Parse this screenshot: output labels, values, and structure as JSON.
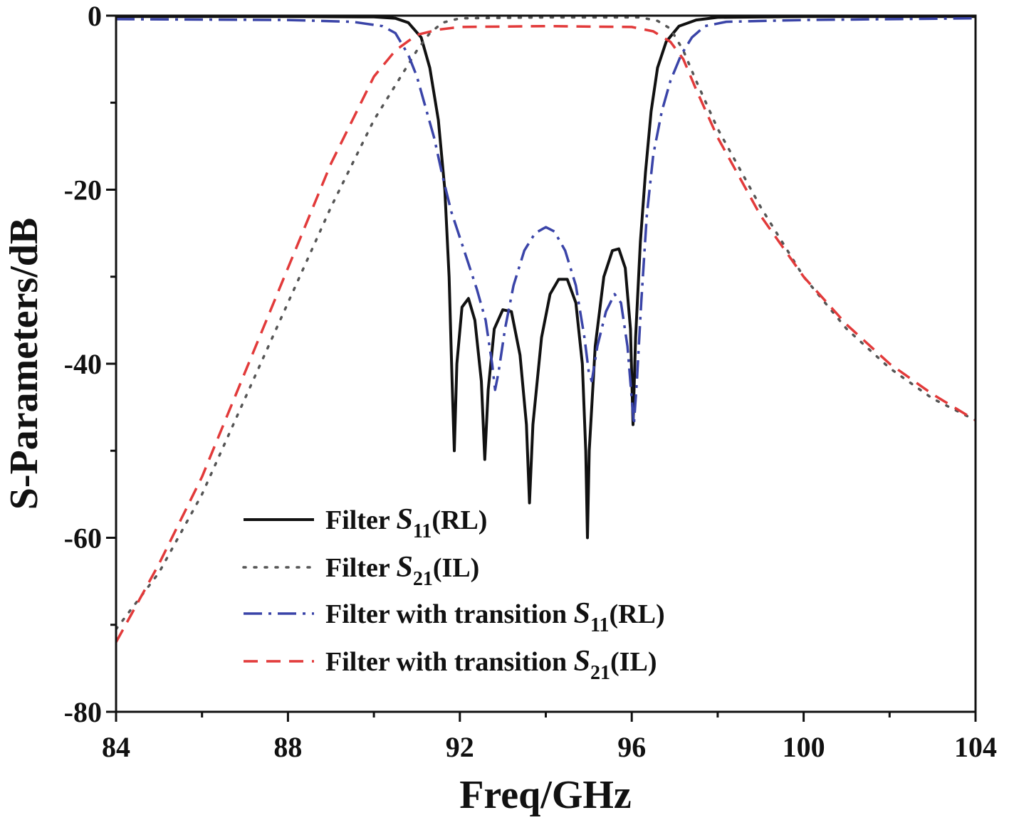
{
  "chart_data": {
    "type": "line",
    "xlabel": "Freq/GHz",
    "ylabel": "S-Parameters/dB",
    "xlim": [
      84,
      104
    ],
    "ylim": [
      -80,
      0
    ],
    "xticks": [
      "84",
      "88",
      "92",
      "96",
      "100",
      "104"
    ],
    "yticks": [
      "0",
      "-20",
      "-40",
      "-60",
      "-80"
    ],
    "grid": false,
    "legend_position": "bottom-center",
    "series": [
      {
        "name": "Filter S11(RL)",
        "legend": {
          "pre": "Filter ",
          "sym": "S",
          "sub": "11",
          "post": "(RL)"
        },
        "color": "#111111",
        "style": "solid",
        "points": [
          [
            84,
            -0.1
          ],
          [
            88,
            -0.1
          ],
          [
            90,
            -0.15
          ],
          [
            90.5,
            -0.3
          ],
          [
            90.8,
            -0.8
          ],
          [
            91.1,
            -2.5
          ],
          [
            91.3,
            -6
          ],
          [
            91.5,
            -12
          ],
          [
            91.65,
            -20
          ],
          [
            91.75,
            -30
          ],
          [
            91.82,
            -42
          ],
          [
            91.87,
            -50
          ],
          [
            91.93,
            -40
          ],
          [
            92.05,
            -33.5
          ],
          [
            92.2,
            -32.5
          ],
          [
            92.35,
            -35
          ],
          [
            92.5,
            -42
          ],
          [
            92.58,
            -51
          ],
          [
            92.66,
            -43
          ],
          [
            92.8,
            -36
          ],
          [
            93.0,
            -33.8
          ],
          [
            93.2,
            -34
          ],
          [
            93.4,
            -39
          ],
          [
            93.55,
            -47
          ],
          [
            93.62,
            -56
          ],
          [
            93.7,
            -47
          ],
          [
            93.9,
            -37
          ],
          [
            94.1,
            -32
          ],
          [
            94.3,
            -30.3
          ],
          [
            94.5,
            -30.3
          ],
          [
            94.7,
            -33
          ],
          [
            94.85,
            -40
          ],
          [
            94.93,
            -50
          ],
          [
            94.97,
            -60
          ],
          [
            95.01,
            -50
          ],
          [
            95.15,
            -38
          ],
          [
            95.35,
            -30
          ],
          [
            95.55,
            -27
          ],
          [
            95.7,
            -26.8
          ],
          [
            95.85,
            -29
          ],
          [
            95.97,
            -36
          ],
          [
            96.03,
            -47
          ],
          [
            96.09,
            -37
          ],
          [
            96.2,
            -26
          ],
          [
            96.32,
            -18
          ],
          [
            96.45,
            -11
          ],
          [
            96.6,
            -6
          ],
          [
            96.8,
            -3
          ],
          [
            97.1,
            -1.2
          ],
          [
            97.5,
            -0.5
          ],
          [
            98,
            -0.2
          ],
          [
            100,
            -0.1
          ],
          [
            104,
            -0.1
          ]
        ]
      },
      {
        "name": "Filter S21(IL)",
        "legend": {
          "pre": "Filter ",
          "sym": "S",
          "sub": "21",
          "post": "(IL)"
        },
        "color": "#555555",
        "style": "dotted",
        "points": [
          [
            84,
            -70.5
          ],
          [
            85,
            -64
          ],
          [
            86,
            -55
          ],
          [
            87,
            -44
          ],
          [
            88,
            -33
          ],
          [
            89,
            -22
          ],
          [
            90,
            -12
          ],
          [
            90.5,
            -8
          ],
          [
            91,
            -4
          ],
          [
            91.3,
            -2
          ],
          [
            91.6,
            -0.8
          ],
          [
            92,
            -0.3
          ],
          [
            94,
            -0.2
          ],
          [
            96.2,
            -0.2
          ],
          [
            96.6,
            -0.6
          ],
          [
            96.9,
            -1.5
          ],
          [
            97.2,
            -4
          ],
          [
            97.5,
            -7.5
          ],
          [
            98,
            -13
          ],
          [
            99,
            -22
          ],
          [
            100,
            -30
          ],
          [
            101,
            -36
          ],
          [
            102,
            -40.5
          ],
          [
            103,
            -44
          ],
          [
            104,
            -46.5
          ]
        ]
      },
      {
        "name": "Filter with transition S11(RL)",
        "legend": {
          "pre": "Filter with transition ",
          "sym": "S",
          "sub": "11",
          "post": "(RL)"
        },
        "color": "#3a44a8",
        "style": "dashdot",
        "points": [
          [
            84,
            -0.4
          ],
          [
            88,
            -0.5
          ],
          [
            89.5,
            -0.7
          ],
          [
            90.2,
            -1.2
          ],
          [
            90.5,
            -2
          ],
          [
            90.8,
            -4.5
          ],
          [
            91.0,
            -7
          ],
          [
            91.2,
            -10.5
          ],
          [
            91.4,
            -14
          ],
          [
            91.6,
            -18.5
          ],
          [
            91.8,
            -22.5
          ],
          [
            92.0,
            -25.5
          ],
          [
            92.2,
            -28.5
          ],
          [
            92.4,
            -31.5
          ],
          [
            92.6,
            -35
          ],
          [
            92.75,
            -40
          ],
          [
            92.82,
            -43
          ],
          [
            92.9,
            -41
          ],
          [
            93.05,
            -36
          ],
          [
            93.25,
            -31
          ],
          [
            93.5,
            -27
          ],
          [
            93.75,
            -25
          ],
          [
            94.0,
            -24.3
          ],
          [
            94.2,
            -24.8
          ],
          [
            94.45,
            -27
          ],
          [
            94.7,
            -31
          ],
          [
            94.9,
            -37
          ],
          [
            95.0,
            -41
          ],
          [
            95.07,
            -42
          ],
          [
            95.2,
            -38
          ],
          [
            95.4,
            -34
          ],
          [
            95.6,
            -32
          ],
          [
            95.75,
            -33
          ],
          [
            95.9,
            -38
          ],
          [
            96.0,
            -44
          ],
          [
            96.05,
            -47
          ],
          [
            96.12,
            -42
          ],
          [
            96.22,
            -33
          ],
          [
            96.35,
            -23
          ],
          [
            96.5,
            -16
          ],
          [
            96.7,
            -11
          ],
          [
            96.9,
            -7.5
          ],
          [
            97.15,
            -4.5
          ],
          [
            97.4,
            -2.5
          ],
          [
            97.7,
            -1.2
          ],
          [
            98.2,
            -0.7
          ],
          [
            100,
            -0.5
          ],
          [
            104,
            -0.3
          ]
        ]
      },
      {
        "name": "Filter with transition S21(IL)",
        "legend": {
          "pre": "Filter with transition ",
          "sym": "S",
          "sub": "21",
          "post": "(IL)"
        },
        "color": "#e23a3a",
        "style": "dashed",
        "points": [
          [
            84,
            -72
          ],
          [
            85,
            -63
          ],
          [
            86,
            -53
          ],
          [
            87,
            -41
          ],
          [
            88,
            -29
          ],
          [
            89,
            -17
          ],
          [
            90,
            -7
          ],
          [
            90.5,
            -4
          ],
          [
            91,
            -2.2
          ],
          [
            91.5,
            -1.6
          ],
          [
            92,
            -1.3
          ],
          [
            94,
            -1.2
          ],
          [
            96,
            -1.3
          ],
          [
            96.5,
            -1.8
          ],
          [
            96.9,
            -3
          ],
          [
            97.2,
            -5
          ],
          [
            97.5,
            -8.5
          ],
          [
            98,
            -14
          ],
          [
            99,
            -23
          ],
          [
            100,
            -30
          ],
          [
            101,
            -35.5
          ],
          [
            102,
            -40
          ],
          [
            103,
            -43.5
          ],
          [
            104,
            -46.5
          ]
        ]
      }
    ]
  }
}
